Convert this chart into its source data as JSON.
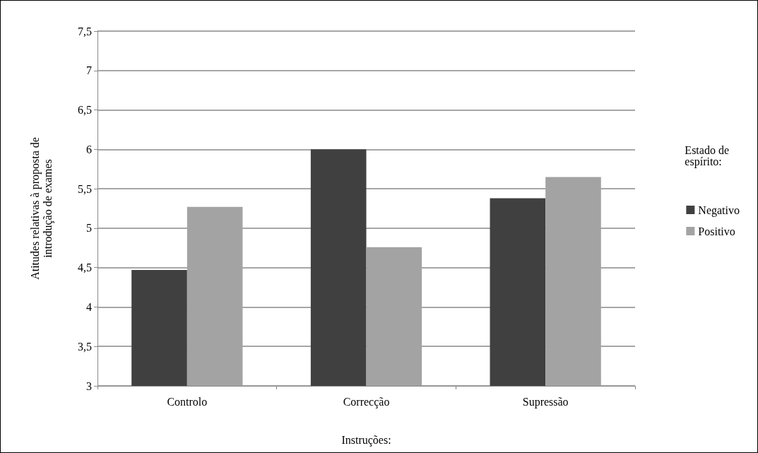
{
  "chart_data": {
    "type": "bar",
    "xlabel": "Instruções:",
    "ylabel": "Atitudes relativas à proposta de\nintrodução de exames",
    "legend_title": "Estado de\nespírito:",
    "categories": [
      "Controlo",
      "Correcção",
      "Supressão"
    ],
    "series": [
      {
        "name": "Negativo",
        "color": "#404040",
        "values": [
          4.47,
          6.0,
          5.38
        ]
      },
      {
        "name": "Positivo",
        "color": "#a3a3a3",
        "values": [
          5.27,
          4.76,
          5.65
        ]
      }
    ],
    "ylim": [
      3,
      7.5
    ],
    "yticks": [
      3,
      {
        "value": 3.5,
        "label": "3,5"
      },
      4,
      {
        "value": 4.5,
        "label": "4,5"
      },
      5,
      {
        "value": 5.5,
        "label": "5,5"
      },
      6,
      {
        "value": 6.5,
        "label": "6,5"
      },
      7,
      {
        "value": 7.5,
        "label": "7,5"
      }
    ],
    "grid": "y",
    "legend": "right"
  }
}
